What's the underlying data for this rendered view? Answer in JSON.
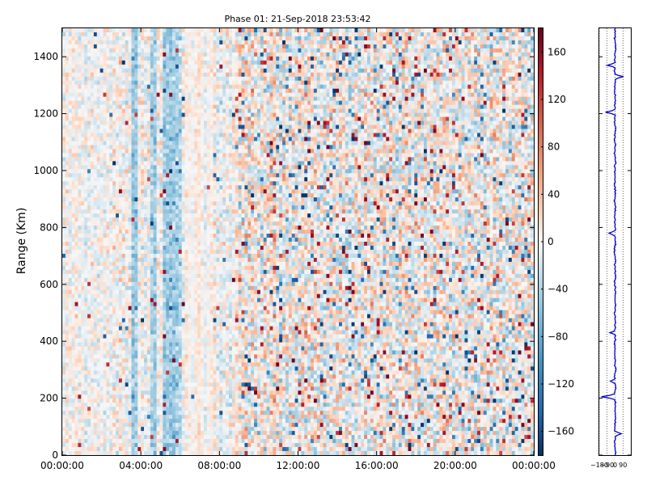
{
  "chart_data": [
    {
      "type": "heatmap",
      "title": "Phase 01: 21-Sep-2018 23:53:42",
      "xlabel": "",
      "ylabel": "Range (Km)",
      "x_ticks": [
        "00:00:00",
        "04:00:00",
        "08:00:00",
        "12:00:00",
        "16:00:00",
        "20:00:00",
        "00:00:00"
      ],
      "y_ticks": [
        0,
        200,
        400,
        600,
        800,
        1000,
        1200,
        1400
      ],
      "ylim": [
        0,
        1500
      ],
      "colormap": "diverging blue-white-red",
      "colors": {
        "neg": "#053061",
        "mid": "#f7f7f7",
        "pos": "#67001f"
      },
      "colorbar": {
        "ticks": [
          -160,
          -120,
          -80,
          -40,
          0,
          40,
          80,
          120,
          160
        ],
        "tick_labels": [
          "−160",
          "−120",
          "−80",
          "−40",
          "0",
          "40",
          "80",
          "120",
          "160"
        ],
        "range": [
          -180,
          180
        ]
      },
      "features": {
        "blue_vertical_bands_hours": [
          3.7,
          4.6,
          5.3,
          5.6,
          5.9
        ],
        "pale_band_hours": [
          6.3,
          7.6
        ],
        "noisy_region_start_hour": 9.0
      }
    },
    {
      "type": "line",
      "title": "",
      "ylim": [
        0,
        1500
      ],
      "xlim": [
        -180,
        180
      ],
      "x_ticks": [
        -180,
        -90,
        0,
        90
      ],
      "x_tick_labels": [
        "−180",
        "−90",
        "0",
        "90"
      ],
      "line_color": "#0000cc",
      "spikes": [
        {
          "range": 1370,
          "value": -90
        },
        {
          "range": 1330,
          "value": 100
        },
        {
          "range": 1205,
          "value": -110
        },
        {
          "range": 780,
          "value": -60
        },
        {
          "range": 430,
          "value": -50
        },
        {
          "range": 260,
          "value": -45
        },
        {
          "range": 205,
          "value": -150
        },
        {
          "range": 75,
          "value": 65
        }
      ]
    }
  ]
}
